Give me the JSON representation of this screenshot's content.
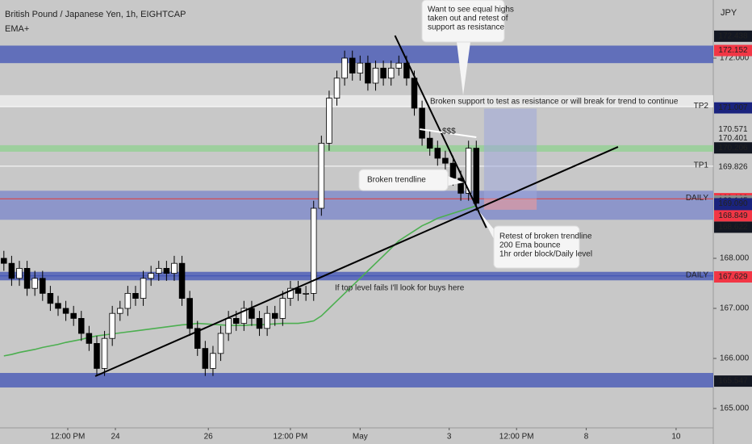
{
  "header": {
    "title": "British Pound / Japanese Yen, 1h, EIGHTCAP",
    "indicator": "EMA+",
    "currency": "JPY"
  },
  "chart_data": {
    "type": "candlestick",
    "x": [
      0,
      1,
      2,
      3,
      4,
      5,
      6,
      7,
      8,
      9,
      10,
      11,
      12,
      13,
      14,
      15,
      16,
      17,
      18,
      19,
      20,
      21,
      22,
      23,
      24,
      25,
      26,
      27,
      28,
      29,
      30,
      31,
      32,
      33,
      34,
      35,
      36,
      37,
      38,
      39,
      40,
      41,
      42,
      43,
      44,
      45,
      46,
      47,
      48,
      49,
      50,
      51,
      52,
      53,
      54,
      55,
      56,
      57,
      58,
      59,
      60,
      61
    ],
    "open": [
      168.0,
      167.9,
      167.6,
      167.8,
      167.4,
      167.6,
      167.3,
      167.1,
      167.0,
      166.9,
      166.8,
      166.5,
      166.3,
      165.8,
      166.4,
      166.9,
      167.0,
      167.3,
      167.2,
      167.6,
      167.7,
      167.8,
      167.7,
      167.9,
      167.2,
      166.6,
      166.2,
      165.8,
      166.1,
      166.5,
      166.8,
      166.7,
      167.0,
      166.8,
      166.6,
      166.9,
      166.8,
      167.2,
      167.4,
      167.3,
      167.3,
      169.0,
      170.3,
      171.2,
      171.6,
      172.0,
      171.7,
      171.9,
      171.5,
      171.8,
      171.6,
      171.8,
      171.9,
      171.6,
      171.0,
      170.4,
      170.2,
      170.0,
      169.9,
      169.6,
      169.3,
      170.2
    ],
    "high": [
      168.15,
      168.05,
      167.95,
      167.95,
      167.75,
      167.75,
      167.45,
      167.25,
      167.15,
      167.05,
      166.95,
      166.65,
      166.45,
      166.55,
      167.05,
      167.15,
      167.45,
      167.45,
      167.75,
      167.85,
      167.95,
      167.95,
      168.05,
      168.05,
      167.35,
      166.75,
      166.35,
      166.25,
      166.65,
      166.95,
      166.95,
      167.15,
      167.15,
      166.95,
      167.05,
      167.05,
      167.35,
      167.55,
      167.55,
      167.45,
      169.15,
      170.45,
      171.35,
      171.75,
      172.15,
      172.15,
      172.05,
      172.05,
      171.95,
      171.95,
      171.95,
      172.05,
      172.05,
      171.75,
      171.15,
      170.55,
      170.35,
      170.15,
      170.05,
      169.75,
      170.35,
      170.35
    ],
    "low": [
      167.75,
      167.45,
      167.45,
      167.25,
      167.25,
      167.15,
      166.95,
      166.85,
      166.75,
      166.65,
      166.35,
      166.15,
      165.65,
      165.65,
      166.25,
      166.75,
      166.85,
      167.05,
      167.05,
      167.45,
      167.55,
      167.55,
      167.55,
      167.05,
      166.45,
      166.05,
      165.65,
      165.65,
      165.95,
      166.35,
      166.55,
      166.55,
      166.65,
      166.45,
      166.45,
      166.65,
      166.65,
      167.05,
      167.15,
      167.15,
      167.15,
      168.85,
      170.15,
      171.05,
      171.45,
      171.55,
      171.55,
      171.35,
      171.35,
      171.45,
      171.45,
      171.65,
      171.45,
      170.85,
      170.25,
      170.05,
      169.85,
      169.75,
      169.45,
      169.15,
      169.15,
      168.95
    ],
    "close": [
      167.9,
      167.6,
      167.8,
      167.4,
      167.6,
      167.3,
      167.1,
      167.0,
      166.9,
      166.8,
      166.5,
      166.3,
      165.8,
      166.4,
      166.9,
      167.0,
      167.3,
      167.2,
      167.6,
      167.7,
      167.8,
      167.7,
      167.9,
      167.2,
      166.6,
      166.2,
      165.8,
      166.1,
      166.5,
      166.8,
      166.7,
      167.0,
      166.8,
      166.6,
      166.9,
      166.8,
      167.2,
      167.4,
      167.3,
      167.3,
      169.0,
      170.3,
      171.2,
      171.6,
      172.0,
      171.7,
      171.9,
      171.5,
      171.8,
      171.6,
      171.8,
      171.9,
      171.6,
      171.0,
      170.4,
      170.2,
      170.0,
      169.9,
      169.6,
      169.3,
      170.2,
      169.1
    ],
    "up_color": "#ffffff",
    "down_color": "#000000",
    "ema": {
      "color": "#4caf50",
      "values": [
        166.05,
        166.08,
        166.12,
        166.15,
        166.18,
        166.22,
        166.25,
        166.28,
        166.32,
        166.35,
        166.38,
        166.42,
        166.45,
        166.47,
        166.49,
        166.51,
        166.53,
        166.55,
        166.57,
        166.59,
        166.61,
        166.63,
        166.65,
        166.67,
        166.68,
        166.7,
        166.69,
        166.68,
        166.67,
        166.66,
        166.66,
        166.66,
        166.67,
        166.67,
        166.68,
        166.69,
        166.7,
        166.7,
        166.7,
        166.72,
        166.75,
        166.85,
        167.0,
        167.15,
        167.3,
        167.45,
        167.6,
        167.75,
        167.9,
        168.05,
        168.2,
        168.35,
        168.45,
        168.55,
        168.65,
        168.72,
        168.8,
        168.85,
        168.9,
        168.95,
        169.0,
        169.05
      ]
    },
    "xlim": [
      -0.5,
      91.6
    ],
    "xticks": [
      {
        "value": 8.25,
        "label": "12:00 PM"
      },
      {
        "value": 14.4,
        "label": "24"
      },
      {
        "value": 26.4,
        "label": "26"
      },
      {
        "value": 37.0,
        "label": "12:00 PM"
      },
      {
        "value": 46.0,
        "label": "May"
      },
      {
        "value": 57.5,
        "label": "3"
      },
      {
        "value": 66.2,
        "label": "12:00 PM"
      },
      {
        "value": 75.2,
        "label": "8"
      },
      {
        "value": 86.8,
        "label": "10"
      }
    ],
    "ylim": [
      164.613,
      173.161
    ],
    "yticks": [
      {
        "value": 172,
        "label": "172.000"
      },
      {
        "value": 168,
        "label": "168.000"
      },
      {
        "value": 167,
        "label": "167.000"
      },
      {
        "value": 166,
        "label": "166.000"
      },
      {
        "value": 165,
        "label": "165.000"
      }
    ],
    "zones": [
      {
        "range": [
          171.9,
          172.25
        ],
        "color": "#3f51b5"
      },
      {
        "range": [
          171.03,
          171.26
        ],
        "color": "#f2f2f2"
      },
      {
        "range": [
          170.13,
          170.26
        ],
        "color": "#8fd18f"
      },
      {
        "range": [
          168.77,
          169.35
        ],
        "color": "#7986cb"
      },
      {
        "range": [
          167.56,
          167.73
        ],
        "color": "#3f51b5"
      },
      {
        "range": [
          165.42,
          165.71
        ],
        "color": "#3f51b5"
      }
    ],
    "levels": [
      {
        "value": 171.03,
        "color": "#ffffff",
        "label": "TP2"
      },
      {
        "value": 169.84,
        "color": "#ffffff",
        "label": "TP1"
      },
      {
        "value": 169.19,
        "color": "#e53935",
        "label": "DAILY"
      },
      {
        "value": 167.65,
        "color": "#3f51b5",
        "label": "DAILY"
      }
    ],
    "trendlines": [
      {
        "x": [
          11.8,
          79.3
        ],
        "y": [
          165.645,
          170.226
        ],
        "color": "#000000"
      },
      {
        "x": [
          50.5,
          62.3
        ],
        "y": [
          172.45,
          168.61
        ],
        "color": "#000000"
      },
      {
        "x": [
          53.7,
          61.0
        ],
        "y": [
          170.58,
          170.42
        ],
        "color": "#ffffff"
      }
    ],
    "position": {
      "x": [
        62.0,
        68.8
      ],
      "entry": 169.19,
      "target": 170.99,
      "stop": 168.97
    },
    "price_tags": [
      {
        "value": 172.438,
        "bg": "#131722",
        "fg": "#ffffff"
      },
      {
        "value": 172.152,
        "bg": "#f23645",
        "fg": "#ffffff"
      },
      {
        "value": 171.017,
        "bg": "#f5f5f5",
        "fg": "#131722"
      },
      {
        "value": 171.007,
        "bg": "#1a237e",
        "fg": "#ffffff"
      },
      {
        "value": 170.571,
        "bg": "#c8c8c8",
        "fg": "#131722"
      },
      {
        "value": 170.401,
        "bg": "#c8c8c8",
        "fg": "#131722"
      },
      {
        "value": 170.206,
        "bg": "#131722",
        "fg": "#ffffff"
      },
      {
        "value": 169.826,
        "bg": "#c8c8c8",
        "fg": "#131722"
      },
      {
        "value": 169.192,
        "bg": "#f23645",
        "fg": "#ffffff"
      },
      {
        "value": 169.145,
        "bg": "#8a8a8a",
        "fg": "#ffffff"
      },
      {
        "value": 169.09,
        "bg": "#1a237e",
        "fg": "#ffffff",
        "label": "169.090",
        "countdown": "24:59"
      },
      {
        "value": 168.849,
        "bg": "#f23645",
        "fg": "#ffffff"
      },
      {
        "value": 168.622,
        "bg": "#131722",
        "fg": "#ffffff"
      },
      {
        "value": 167.629,
        "bg": "#f23645",
        "fg": "#ffffff"
      },
      {
        "value": 165.547,
        "bg": "#131722",
        "fg": "#ffffff"
      }
    ],
    "annotations": [
      {
        "lines": [
          "Want to see equal highs",
          "taken out and retest of",
          "support as resistance"
        ]
      },
      {
        "lines": [
          "Broken support to test as resistance or will break for trend to continue"
        ]
      },
      {
        "lines": [
          "$$$"
        ]
      },
      {
        "lines": [
          "Broken trendline"
        ]
      },
      {
        "lines": [
          "Retest of broken trendline",
          "200 Ema bounce",
          "1hr order block/Daily level"
        ]
      },
      {
        "lines": [
          "If top level fails I'll look for buys here"
        ]
      }
    ]
  }
}
